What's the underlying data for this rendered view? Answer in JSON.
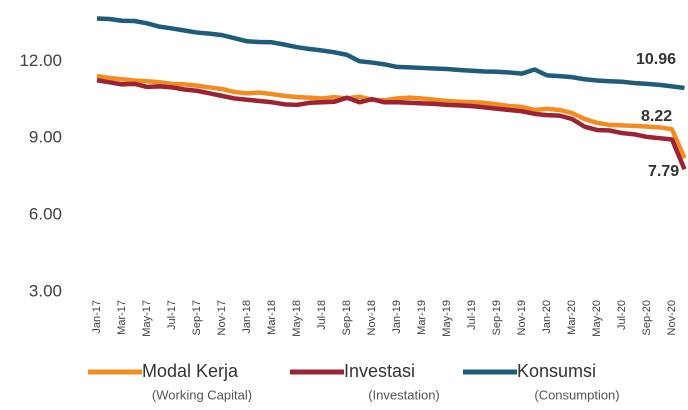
{
  "chart_data": {
    "type": "line",
    "categories": [
      "Jan-17",
      null,
      "Mar-17",
      null,
      "May-17",
      null,
      "Jul-17",
      null,
      "Sep-17",
      null,
      "Nov-17",
      null,
      "Jan-18",
      null,
      "Mar-18",
      null,
      "May-18",
      null,
      "Jul-18",
      null,
      "Sep-18",
      null,
      "Nov-18",
      null,
      "Jan-19",
      null,
      "Mar-19",
      null,
      "May-19",
      null,
      "Jul-19",
      null,
      "Sep-19",
      null,
      "Nov-19",
      null,
      "Jan-20",
      null,
      "Mar-20",
      null,
      "May-20",
      null,
      "Jul-20",
      null,
      "Sep-20",
      null,
      "Nov-20",
      null
    ],
    "series": [
      {
        "name": "Modal Kerja",
        "subtitle": "(Working Capital)",
        "color": "#f28c1e",
        "values": [
          11.42,
          11.35,
          11.3,
          11.25,
          11.22,
          11.18,
          11.12,
          11.1,
          11.05,
          10.98,
          10.92,
          10.8,
          10.75,
          10.78,
          10.72,
          10.65,
          10.6,
          10.58,
          10.55,
          10.6,
          10.55,
          10.62,
          10.5,
          10.48,
          10.55,
          10.58,
          10.55,
          10.5,
          10.45,
          10.42,
          10.4,
          10.38,
          10.32,
          10.25,
          10.22,
          10.1,
          10.15,
          10.1,
          9.98,
          9.75,
          9.6,
          9.52,
          9.5,
          9.48,
          9.45,
          9.42,
          9.35,
          8.22
        ]
      },
      {
        "name": "Investasi",
        "subtitle": "(Investation)",
        "color": "#9b2335",
        "values": [
          11.26,
          11.18,
          11.1,
          11.12,
          11.0,
          11.02,
          10.98,
          10.9,
          10.85,
          10.75,
          10.65,
          10.55,
          10.5,
          10.45,
          10.4,
          10.32,
          10.3,
          10.38,
          10.4,
          10.42,
          10.58,
          10.4,
          10.52,
          10.4,
          10.4,
          10.38,
          10.36,
          10.34,
          10.3,
          10.28,
          10.25,
          10.2,
          10.15,
          10.1,
          10.05,
          9.95,
          9.9,
          9.88,
          9.75,
          9.45,
          9.32,
          9.3,
          9.2,
          9.15,
          9.05,
          9.0,
          8.95,
          7.79
        ]
      },
      {
        "name": "Konsumsi",
        "subtitle": "(Consumption)",
        "color": "#1f5c7a",
        "values": [
          13.67,
          13.65,
          13.58,
          13.57,
          13.48,
          13.35,
          13.28,
          13.2,
          13.12,
          13.08,
          13.02,
          12.9,
          12.78,
          12.75,
          12.74,
          12.65,
          12.55,
          12.48,
          12.42,
          12.35,
          12.25,
          12.0,
          11.95,
          11.88,
          11.78,
          11.76,
          11.74,
          11.72,
          11.7,
          11.66,
          11.63,
          11.6,
          11.59,
          11.56,
          11.52,
          11.68,
          11.45,
          11.42,
          11.38,
          11.3,
          11.25,
          11.22,
          11.2,
          11.15,
          11.12,
          11.08,
          11.02,
          10.96
        ]
      }
    ],
    "ylim": [
      3,
      14
    ],
    "yticks": [
      {
        "value": 3,
        "label": "3.00"
      },
      {
        "value": 6,
        "label": "6.00"
      },
      {
        "value": 9,
        "label": "9.00"
      },
      {
        "value": 12,
        "label": "12.00"
      }
    ],
    "grid": false
  }
}
